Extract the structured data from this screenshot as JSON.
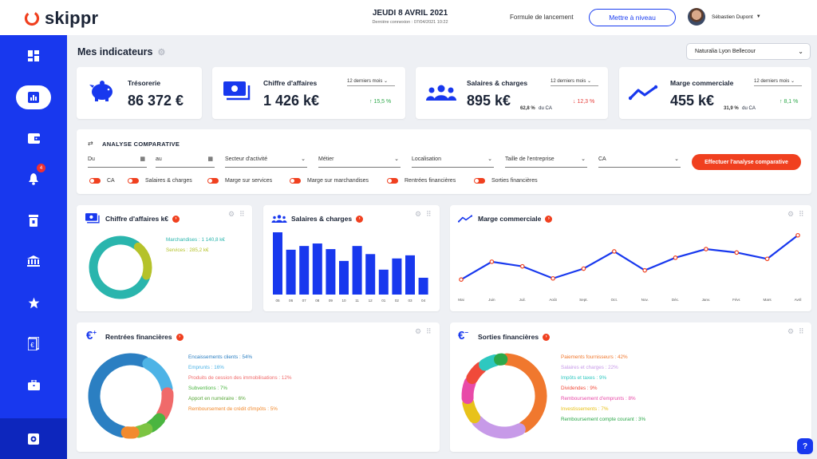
{
  "app": {
    "name": "skippr"
  },
  "header": {
    "date": "JEUDI 8 AVRIL 2021",
    "last_connection": "Dernière connexion : 07/04/2021 10:22",
    "plan": "Formule de lancement",
    "upgrade_label": "Mettre à niveau",
    "user_name": "Sébastien Dupont"
  },
  "sidebar": {
    "notification_count": "4"
  },
  "page": {
    "title": "Mes indicateurs",
    "site": "Naturalia Lyon Bellecour"
  },
  "kpis": [
    {
      "label": "Trésorerie",
      "value": "86 372 €"
    },
    {
      "label": "Chiffre d'affaires",
      "value": "1 426 k€",
      "period": "12 derniers mois",
      "trend": "↑ 15,5 %"
    },
    {
      "label": "Salaires & charges",
      "value": "895 k€",
      "share": "62,8 %",
      "share_suffix": "du CA",
      "period": "12 derniers mois",
      "trend": "↓ 12,3 %"
    },
    {
      "label": "Marge commerciale",
      "value": "455 k€",
      "share": "31,9 %",
      "share_suffix": "du CA",
      "period": "12 derniers mois",
      "trend": "↑ 8,1 %"
    }
  ],
  "analysis": {
    "title": "ANALYSE COMPARATIVE",
    "from_label": "Du",
    "to_label": "au",
    "filters": [
      "Secteur d'activité",
      "Métier",
      "Localisation",
      "Taille de l'entreprise",
      "CA"
    ],
    "button_label": "Effectuer l'analyse comparative",
    "toggles": [
      "CA",
      "Salaires & charges",
      "Marge sur services",
      "Marge sur marchandises",
      "Rentrées financières",
      "Sorties financières"
    ]
  },
  "colors": {
    "brand": "#1838ee",
    "accent": "#f0401f",
    "up": "#2da84a",
    "down": "#e53935"
  },
  "chart_data": [
    {
      "type": "pie",
      "title": "Chiffre d'affaires k€",
      "labels": [
        "Marchandises",
        "Services"
      ],
      "values": [
        1140.8,
        285.2
      ],
      "value_labels": [
        "Marchandises : 1 140,8 k€",
        "Services : 285,2 k€"
      ],
      "colors": [
        "#2ab5ad",
        "#b5c22a"
      ]
    },
    {
      "type": "bar",
      "title": "Salaires & charges",
      "categories": [
        "05",
        "06",
        "07",
        "08",
        "09",
        "10",
        "11",
        "12",
        "01",
        "02",
        "03",
        "04"
      ],
      "values": [
        100,
        72,
        78,
        82,
        73,
        54,
        78,
        65,
        40,
        58,
        63,
        27
      ],
      "ylim": [
        0,
        100
      ],
      "color": "#1838ee"
    },
    {
      "type": "line",
      "title": "Marge commerciale",
      "categories": [
        "Mai",
        "Juin",
        "Juil.",
        "Août",
        "Sept.",
        "Oct.",
        "Nov.",
        "Déc.",
        "Janv.",
        "Févr.",
        "Mars",
        "Avril"
      ],
      "values": [
        15,
        46,
        38,
        17,
        34,
        64,
        31,
        53,
        68,
        62,
        51,
        92
      ],
      "ylim": [
        0,
        100
      ],
      "color": "#1838ee",
      "point_color": "#f0401f"
    },
    {
      "type": "pie",
      "title": "Rentrées financières",
      "labels": [
        "Encaissements clients",
        "Emprunts",
        "Produits de cession des immobilisations",
        "Subventions",
        "Apport en numéraire",
        "Remboursement de crédit d'impôts"
      ],
      "values": [
        54,
        16,
        12,
        7,
        6,
        5
      ],
      "value_labels": [
        "Encaissements clients : 54%",
        "Emprunts : 16%",
        "Produits de cession des immobilisations : 12%",
        "Subventions : 7%",
        "Apport en numéraire : 6%",
        "Remboursement de crédit d'impôts : 5%"
      ],
      "colors": [
        "#2b7fc2",
        "#4db3e6",
        "#f06a6a",
        "#4ab540",
        "#7cc442",
        "#f28a2e"
      ]
    },
    {
      "type": "pie",
      "title": "Sorties financières",
      "labels": [
        "Paiements fournisseurs",
        "Salaires et charges",
        "Impôts et taxes",
        "Dividendes",
        "Remboursement d'emprunts",
        "Investissements",
        "Remboursement compte courant"
      ],
      "values": [
        42,
        22,
        9,
        9,
        8,
        7,
        3
      ],
      "value_labels": [
        "Paiements fournisseurs : 42%",
        "Salaires et charges : 22%",
        "Impôts et taxes : 9%",
        "Dividendes : 9%",
        "Remboursement d'emprunts : 8%",
        "Investissements : 7%",
        "Remboursement compte courant : 3%"
      ],
      "colors": [
        "#f0782e",
        "#c79ae8",
        "#e8c21a",
        "#e84aa8",
        "#f04a3a",
        "#2ec8c0",
        "#2ca84a"
      ]
    }
  ]
}
